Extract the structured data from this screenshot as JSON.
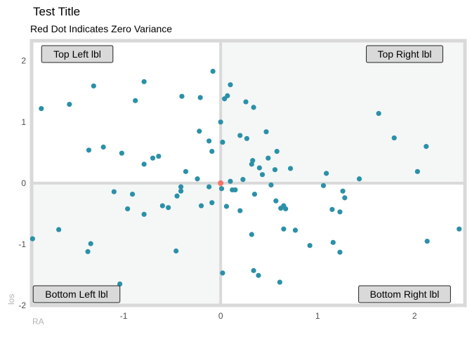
{
  "chart_data": {
    "type": "scatter",
    "title": "Test Title",
    "subtitle": "Red Dot Indicates Zero Variance",
    "xlabel": "RA",
    "ylabel": "los",
    "xlim": [
      -1.95,
      2.52
    ],
    "ylim": [
      -2.0,
      2.33
    ],
    "x_ticks": [
      -1,
      0,
      1,
      2
    ],
    "y_ticks": [
      -2,
      -1,
      0,
      1,
      2
    ],
    "grid": false,
    "quadrant_labels": {
      "top_left": "Top Left lbl",
      "top_right": "Top Right lbl",
      "bottom_left": "Bottom Left lbl",
      "bottom_right": "Bottom Right lbl"
    },
    "colors": {
      "points": "#2b90a8",
      "zero_point": "#f47368",
      "quadrant_shade": "#f4f7f6",
      "frame": "#d9d9d9",
      "label_fill": "#d9d9d9"
    },
    "zero_point": {
      "x": 0.0,
      "y": 0.0
    },
    "points": [
      {
        "x": -1.14,
        "y": 2.16
      },
      {
        "x": -1.85,
        "y": 1.22
      },
      {
        "x": -1.56,
        "y": 1.29
      },
      {
        "x": -1.31,
        "y": 1.59
      },
      {
        "x": -0.79,
        "y": 1.66
      },
      {
        "x": -0.88,
        "y": 1.35
      },
      {
        "x": -0.4,
        "y": 1.42
      },
      {
        "x": -0.21,
        "y": 1.4
      },
      {
        "x": -0.08,
        "y": 1.83
      },
      {
        "x": 0.04,
        "y": 1.38
      },
      {
        "x": 0.07,
        "y": 1.43
      },
      {
        "x": 0.1,
        "y": 1.61
      },
      {
        "x": 0.26,
        "y": 1.33
      },
      {
        "x": 0.34,
        "y": 1.24
      },
      {
        "x": 1.63,
        "y": 1.14
      },
      {
        "x": -0.22,
        "y": 0.85
      },
      {
        "x": 0.0,
        "y": 1.0
      },
      {
        "x": 0.2,
        "y": 0.78
      },
      {
        "x": 0.27,
        "y": 0.73
      },
      {
        "x": 0.47,
        "y": 0.84
      },
      {
        "x": 1.79,
        "y": 0.74
      },
      {
        "x": -1.36,
        "y": 0.54
      },
      {
        "x": -1.21,
        "y": 0.59
      },
      {
        "x": -1.02,
        "y": 0.49
      },
      {
        "x": -0.7,
        "y": 0.41
      },
      {
        "x": -0.64,
        "y": 0.44
      },
      {
        "x": -0.79,
        "y": 0.31
      },
      {
        "x": -0.12,
        "y": 0.69
      },
      {
        "x": -0.09,
        "y": 0.52
      },
      {
        "x": 0.02,
        "y": 0.67
      },
      {
        "x": 0.32,
        "y": 0.31
      },
      {
        "x": 0.33,
        "y": 0.37
      },
      {
        "x": 0.49,
        "y": 0.41
      },
      {
        "x": 0.58,
        "y": 0.52
      },
      {
        "x": 2.12,
        "y": 0.6
      },
      {
        "x": -0.36,
        "y": 0.19
      },
      {
        "x": 0.4,
        "y": 0.25
      },
      {
        "x": 0.56,
        "y": 0.22
      },
      {
        "x": 0.72,
        "y": 0.24
      },
      {
        "x": 1.09,
        "y": 0.16
      },
      {
        "x": 2.03,
        "y": 0.19
      },
      {
        "x": 0.43,
        "y": 0.14
      },
      {
        "x": -0.24,
        "y": 0.07
      },
      {
        "x": 0.1,
        "y": 0.03
      },
      {
        "x": 0.23,
        "y": 0.06
      },
      {
        "x": 1.43,
        "y": 0.07
      },
      {
        "x": -0.12,
        "y": -0.06
      },
      {
        "x": -0.41,
        "y": -0.06
      },
      {
        "x": 0.01,
        "y": -0.09
      },
      {
        "x": 0.12,
        "y": -0.11
      },
      {
        "x": 0.15,
        "y": -0.11
      },
      {
        "x": 0.52,
        "y": -0.03
      },
      {
        "x": 1.06,
        "y": -0.04
      },
      {
        "x": 1.26,
        "y": -0.13
      },
      {
        "x": -1.1,
        "y": -0.14
      },
      {
        "x": -0.91,
        "y": -0.18
      },
      {
        "x": -0.41,
        "y": -0.13
      },
      {
        "x": -0.45,
        "y": -0.21
      },
      {
        "x": 0.35,
        "y": -0.18
      },
      {
        "x": 1.28,
        "y": -0.24
      },
      {
        "x": -0.96,
        "y": -0.42
      },
      {
        "x": -0.79,
        "y": -0.51
      },
      {
        "x": -0.6,
        "y": -0.37
      },
      {
        "x": -0.54,
        "y": -0.4
      },
      {
        "x": -0.2,
        "y": -0.37
      },
      {
        "x": -0.09,
        "y": -0.32
      },
      {
        "x": 0.06,
        "y": -0.38
      },
      {
        "x": 0.2,
        "y": -0.45
      },
      {
        "x": 0.57,
        "y": -0.29
      },
      {
        "x": 0.62,
        "y": -0.41
      },
      {
        "x": 0.65,
        "y": -0.37
      },
      {
        "x": 0.67,
        "y": -0.42
      },
      {
        "x": 1.15,
        "y": -0.43
      },
      {
        "x": 1.23,
        "y": -0.47
      },
      {
        "x": -1.94,
        "y": -0.91
      },
      {
        "x": -1.67,
        "y": -0.76
      },
      {
        "x": -1.37,
        "y": -1.12
      },
      {
        "x": -1.34,
        "y": -0.99
      },
      {
        "x": -0.46,
        "y": -1.11
      },
      {
        "x": 0.32,
        "y": -0.84
      },
      {
        "x": 0.65,
        "y": -0.75
      },
      {
        "x": 0.77,
        "y": -0.77
      },
      {
        "x": 0.92,
        "y": -1.02
      },
      {
        "x": 1.16,
        "y": -0.97
      },
      {
        "x": 1.23,
        "y": -1.13
      },
      {
        "x": 2.13,
        "y": -0.95
      },
      {
        "x": 2.46,
        "y": -0.75
      },
      {
        "x": 0.34,
        "y": -1.43
      },
      {
        "x": 0.39,
        "y": -1.51
      },
      {
        "x": 0.02,
        "y": -1.47
      },
      {
        "x": 0.61,
        "y": -1.62
      },
      {
        "x": -1.04,
        "y": -1.65
      }
    ]
  }
}
